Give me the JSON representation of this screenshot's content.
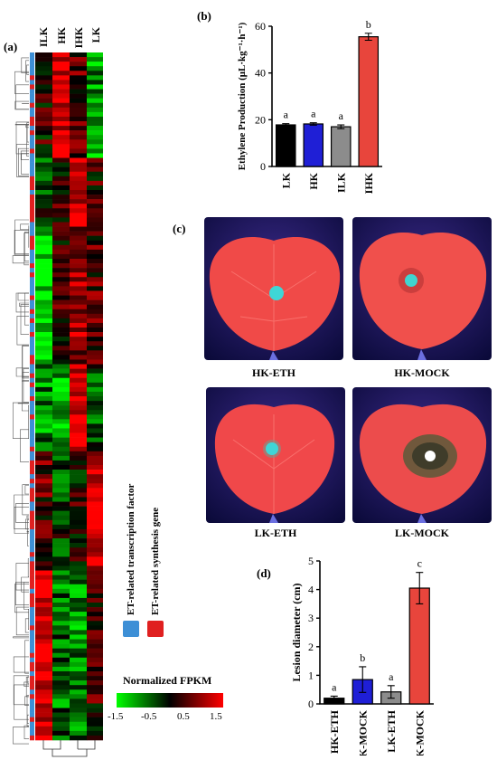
{
  "panels": {
    "a": "(a)",
    "b": "(b)",
    "c": "(c)",
    "d": "(d)"
  },
  "heatmap": {
    "columns": [
      "ILK",
      "HK",
      "IHK",
      "LK"
    ],
    "legend_title": "Normalized FPKM",
    "scale_ticks": [
      "-1.5",
      "-0.5",
      "0.5",
      "1.5"
    ],
    "category_legend": [
      {
        "label": "ET-related transcription factor",
        "color": "#3d8fd6"
      },
      {
        "label": "ET-related synthesis gene",
        "color": "#e02020"
      }
    ],
    "colors": {
      "low": "#00ff00",
      "mid": "#000000",
      "high": "#ff0000"
    }
  },
  "photos": {
    "captions": [
      "HK-ETH",
      "HK-MOCK",
      "LK-ETH",
      "LK-MOCK"
    ]
  },
  "chart_data": [
    {
      "type": "bar",
      "panel": "(b)",
      "title": "",
      "xlabel": "",
      "ylabel": "Ethylene Production (μL·kg⁻¹·h⁻¹)",
      "categories": [
        "LK",
        "HK",
        "ILK",
        "IHK"
      ],
      "values": [
        17.8,
        18.2,
        17.0,
        55.5
      ],
      "errors": [
        0.5,
        0.5,
        0.8,
        1.5
      ],
      "letters": [
        "a",
        "a",
        "a",
        "b"
      ],
      "colors": [
        "#000000",
        "#1f1fd6",
        "#8c8c8c",
        "#e8453c"
      ],
      "yticks": [
        "0",
        "20",
        "40",
        "60"
      ],
      "ylim": [
        0,
        60
      ]
    },
    {
      "type": "bar",
      "panel": "(d)",
      "title": "",
      "xlabel": "",
      "ylabel": "Lesion diameter (cm)",
      "categories": [
        "HK-ETH",
        "HK-MOCK",
        "LK-ETH",
        "LK-MOCK"
      ],
      "values": [
        0.2,
        0.85,
        0.42,
        4.05
      ],
      "errors": [
        0.07,
        0.45,
        0.22,
        0.55
      ],
      "letters": [
        "a",
        "b",
        "a",
        "c"
      ],
      "colors": [
        "#000000",
        "#1f1fd6",
        "#8c8c8c",
        "#e8453c"
      ],
      "yticks": [
        "0",
        "1",
        "2",
        "3",
        "4",
        "5"
      ],
      "ylim": [
        0,
        5
      ]
    }
  ]
}
